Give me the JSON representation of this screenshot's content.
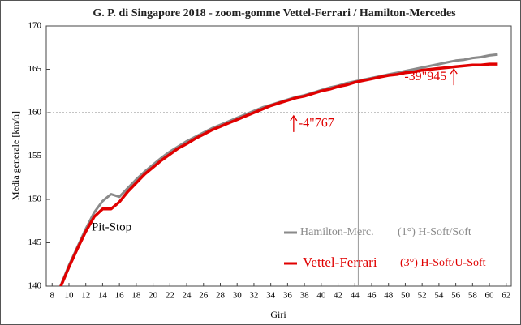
{
  "chart_data": {
    "type": "line",
    "title": "G. P. di Singapore 2018 - zoom-gomme Vettel-Ferrari / Hamilton-Mercedes",
    "x_label": "Giri",
    "y_label": "Media generale  [km/h]",
    "x": [
      9,
      10,
      11,
      12,
      13,
      14,
      15,
      16,
      17,
      18,
      19,
      20,
      21,
      22,
      23,
      24,
      25,
      26,
      27,
      28,
      29,
      30,
      31,
      32,
      33,
      34,
      35,
      36,
      37,
      38,
      39,
      40,
      41,
      42,
      43,
      44,
      45,
      46,
      47,
      48,
      49,
      50,
      51,
      52,
      53,
      54,
      55,
      56,
      57,
      58,
      59,
      60,
      61
    ],
    "series": [
      {
        "name": "Hamilton-Merc.",
        "detail": "(1°) H-Soft/Soft",
        "color": "#8a8a8a",
        "values": [
          140,
          142.4,
          144.5,
          146.6,
          148.5,
          149.8,
          150.6,
          150.3,
          151.3,
          152.3,
          153.2,
          154.0,
          154.8,
          155.5,
          156.1,
          156.7,
          157.2,
          157.7,
          158.2,
          158.6,
          159.0,
          159.4,
          159.8,
          160.2,
          160.6,
          160.9,
          161.2,
          161.5,
          161.8,
          162.0,
          162.3,
          162.6,
          162.9,
          163.1,
          163.4,
          163.6,
          163.8,
          164.0,
          164.2,
          164.4,
          164.6,
          164.8,
          165.0,
          165.2,
          165.4,
          165.6,
          165.8,
          166.0,
          166.1,
          166.3,
          166.4,
          166.6,
          166.7
        ]
      },
      {
        "name": "Vettel-Ferrari",
        "detail": "(3°) H-Soft/U-Soft",
        "color": "#e00000",
        "values": [
          139.9,
          142.2,
          144.3,
          146.3,
          148.0,
          148.9,
          148.9,
          149.7,
          150.9,
          151.9,
          152.9,
          153.7,
          154.5,
          155.2,
          155.9,
          156.4,
          157.0,
          157.5,
          158.0,
          158.4,
          158.8,
          159.2,
          159.6,
          160.0,
          160.4,
          160.8,
          161.1,
          161.4,
          161.7,
          161.9,
          162.2,
          162.5,
          162.7,
          163.0,
          163.2,
          163.5,
          163.7,
          163.9,
          164.1,
          164.3,
          164.4,
          164.6,
          164.7,
          164.9,
          165.0,
          165.1,
          165.2,
          165.3,
          165.4,
          165.5,
          165.5,
          165.6,
          165.6
        ]
      }
    ],
    "xlim": [
      7.3,
      62.6
    ],
    "xticks": [
      8,
      10,
      12,
      14,
      16,
      18,
      20,
      22,
      24,
      26,
      28,
      30,
      32,
      34,
      36,
      38,
      40,
      42,
      44,
      46,
      48,
      50,
      52,
      54,
      56,
      58,
      60,
      62
    ],
    "ylim": [
      140,
      170
    ],
    "yticks": [
      140,
      145,
      150,
      155,
      160,
      165,
      170
    ],
    "hline": 160,
    "vline": 44.4,
    "annotations": [
      {
        "text": "Pit-Stop",
        "x": 12.7,
        "y": 146.7,
        "color": "#000000"
      },
      {
        "text": "-4\"767",
        "x": 37.3,
        "y": 158.7,
        "color": "#e00000"
      },
      {
        "text": "-39\"945",
        "x": 54.9,
        "y": 164.1,
        "color": "#e00000"
      }
    ]
  }
}
